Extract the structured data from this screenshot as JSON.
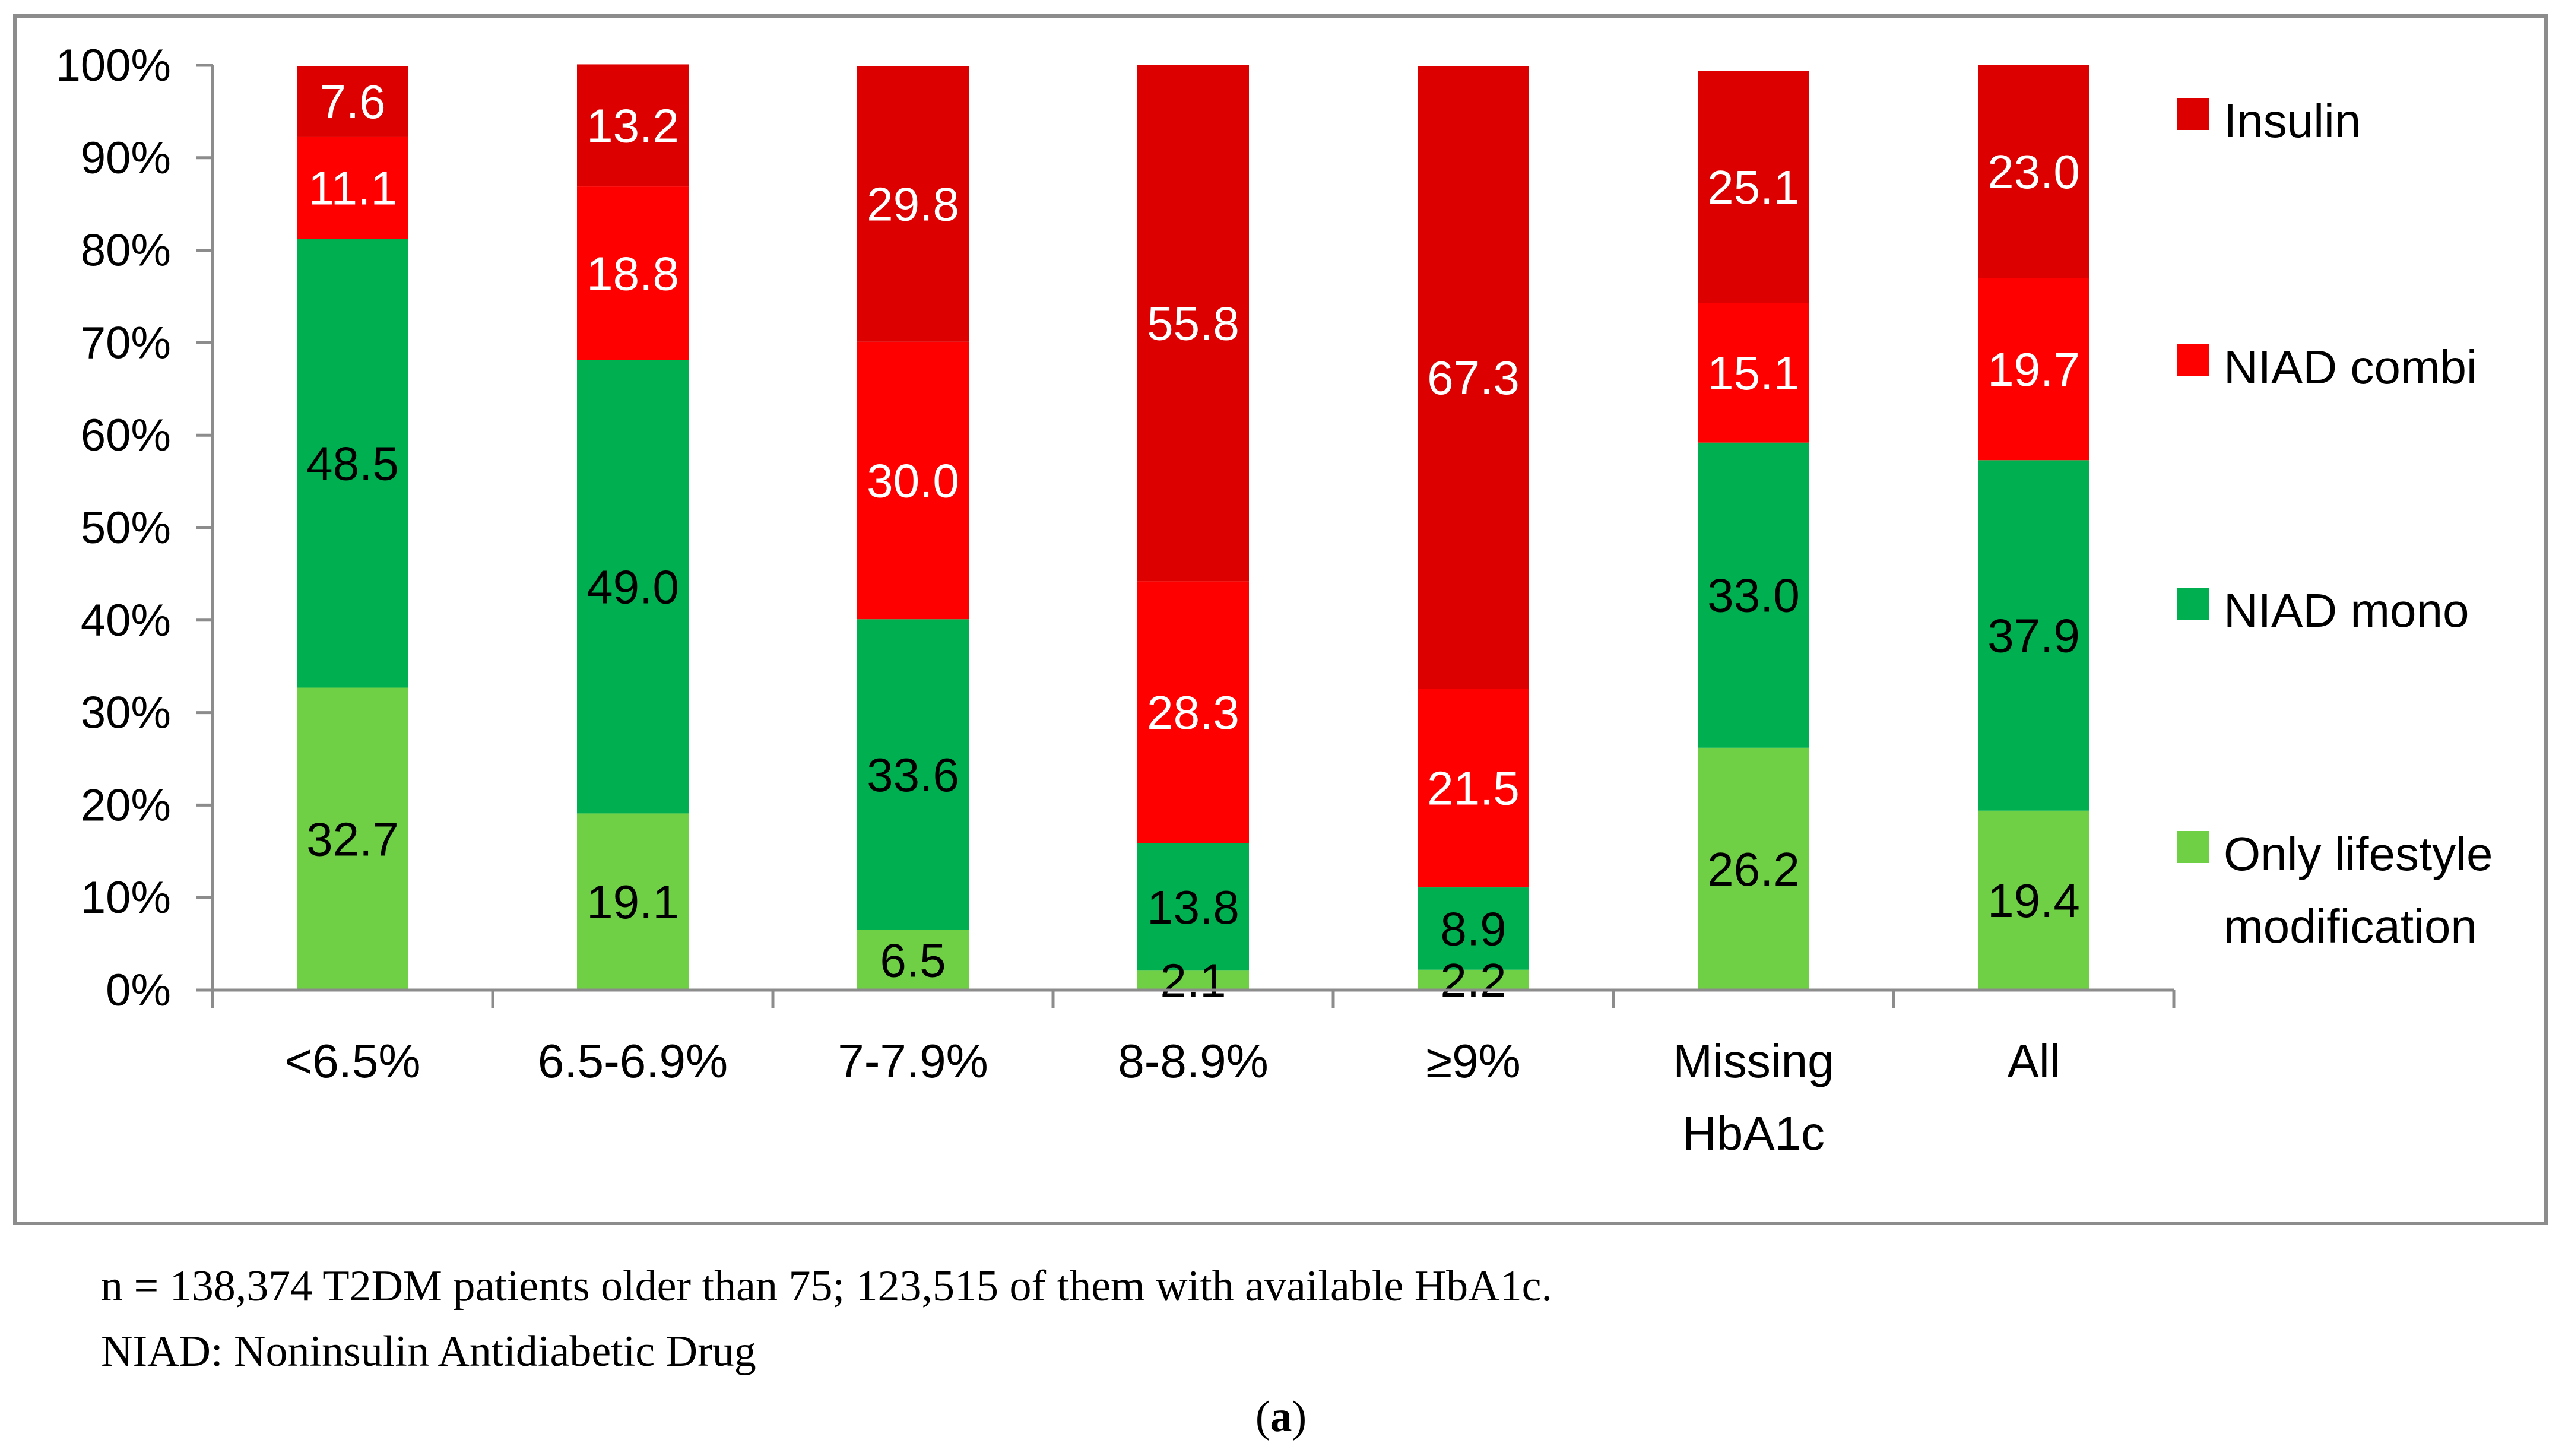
{
  "chart_data": {
    "type": "bar",
    "stacked": true,
    "categories": [
      "<6.5%",
      "6.5-6.9%",
      "7-7.9%",
      "8-8.9%",
      "≥9%",
      "Missing HbA1c",
      "All"
    ],
    "series": [
      {
        "name": "Only lifestyle modification",
        "color": "#6fd045",
        "label_color": "#000000",
        "values": [
          32.7,
          19.1,
          6.5,
          2.1,
          2.2,
          26.2,
          19.4
        ]
      },
      {
        "name": "NIAD mono",
        "color": "#00b050",
        "label_color": "#000000",
        "values": [
          48.5,
          49.0,
          33.6,
          13.8,
          8.9,
          33.0,
          37.9
        ]
      },
      {
        "name": "NIAD combi",
        "color": "#ff0000",
        "label_color": "#ffffff",
        "values": [
          11.1,
          18.8,
          30.0,
          28.3,
          21.5,
          15.1,
          19.7
        ]
      },
      {
        "name": "Insulin",
        "color": "#dc0000",
        "label_color": "#ffffff",
        "values": [
          7.6,
          13.2,
          29.8,
          55.8,
          67.3,
          25.1,
          23.0
        ]
      }
    ],
    "ylim": [
      0,
      100
    ],
    "y_ticks": [
      "0%",
      "10%",
      "20%",
      "30%",
      "40%",
      "50%",
      "60%",
      "70%",
      "80%",
      "90%",
      "100%"
    ],
    "legend_position": "right",
    "legend_order": [
      "Insulin",
      "NIAD combi",
      "NIAD mono",
      "Only lifestyle modification"
    ]
  },
  "notes": {
    "line1": "n = 138,374 T2DM patients older than 75; 123,515 of them with available HbA1c.",
    "line2": "NIAD: Noninsulin Antidiabetic Drug"
  },
  "panel": {
    "open": "(",
    "letter": "a",
    "close": ")"
  }
}
